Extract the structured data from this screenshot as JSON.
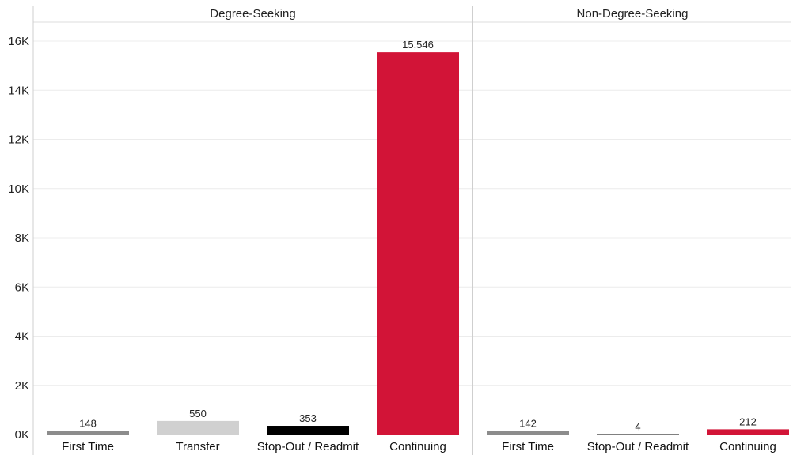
{
  "chart_data": {
    "type": "bar",
    "title": "",
    "xlabel": "",
    "ylabel": "",
    "ylim": [
      0,
      16800
    ],
    "yticks": [
      0,
      2000,
      4000,
      6000,
      8000,
      10000,
      12000,
      14000,
      16000
    ],
    "ytick_labels": [
      "0K",
      "2K",
      "4K",
      "6K",
      "8K",
      "10K",
      "12K",
      "14K",
      "16K"
    ],
    "grid": true,
    "panels": [
      {
        "name": "Degree-Seeking",
        "categories": [
          "First Time",
          "Transfer",
          "Stop-Out / Readmit",
          "Continuing"
        ],
        "values": [
          148,
          550,
          353,
          15546
        ],
        "value_labels": [
          "148",
          "550",
          "353",
          "15,546"
        ],
        "colors": [
          "#8c8c8c",
          "#d0d0d0",
          "#000000",
          "#d21437"
        ]
      },
      {
        "name": "Non-Degree-Seeking",
        "categories": [
          "First Time",
          "Stop-Out / Readmit",
          "Continuing"
        ],
        "values": [
          142,
          4,
          212
        ],
        "value_labels": [
          "142",
          "4",
          "212"
        ],
        "colors": [
          "#8c8c8c",
          "#000000",
          "#d21437"
        ]
      }
    ]
  }
}
